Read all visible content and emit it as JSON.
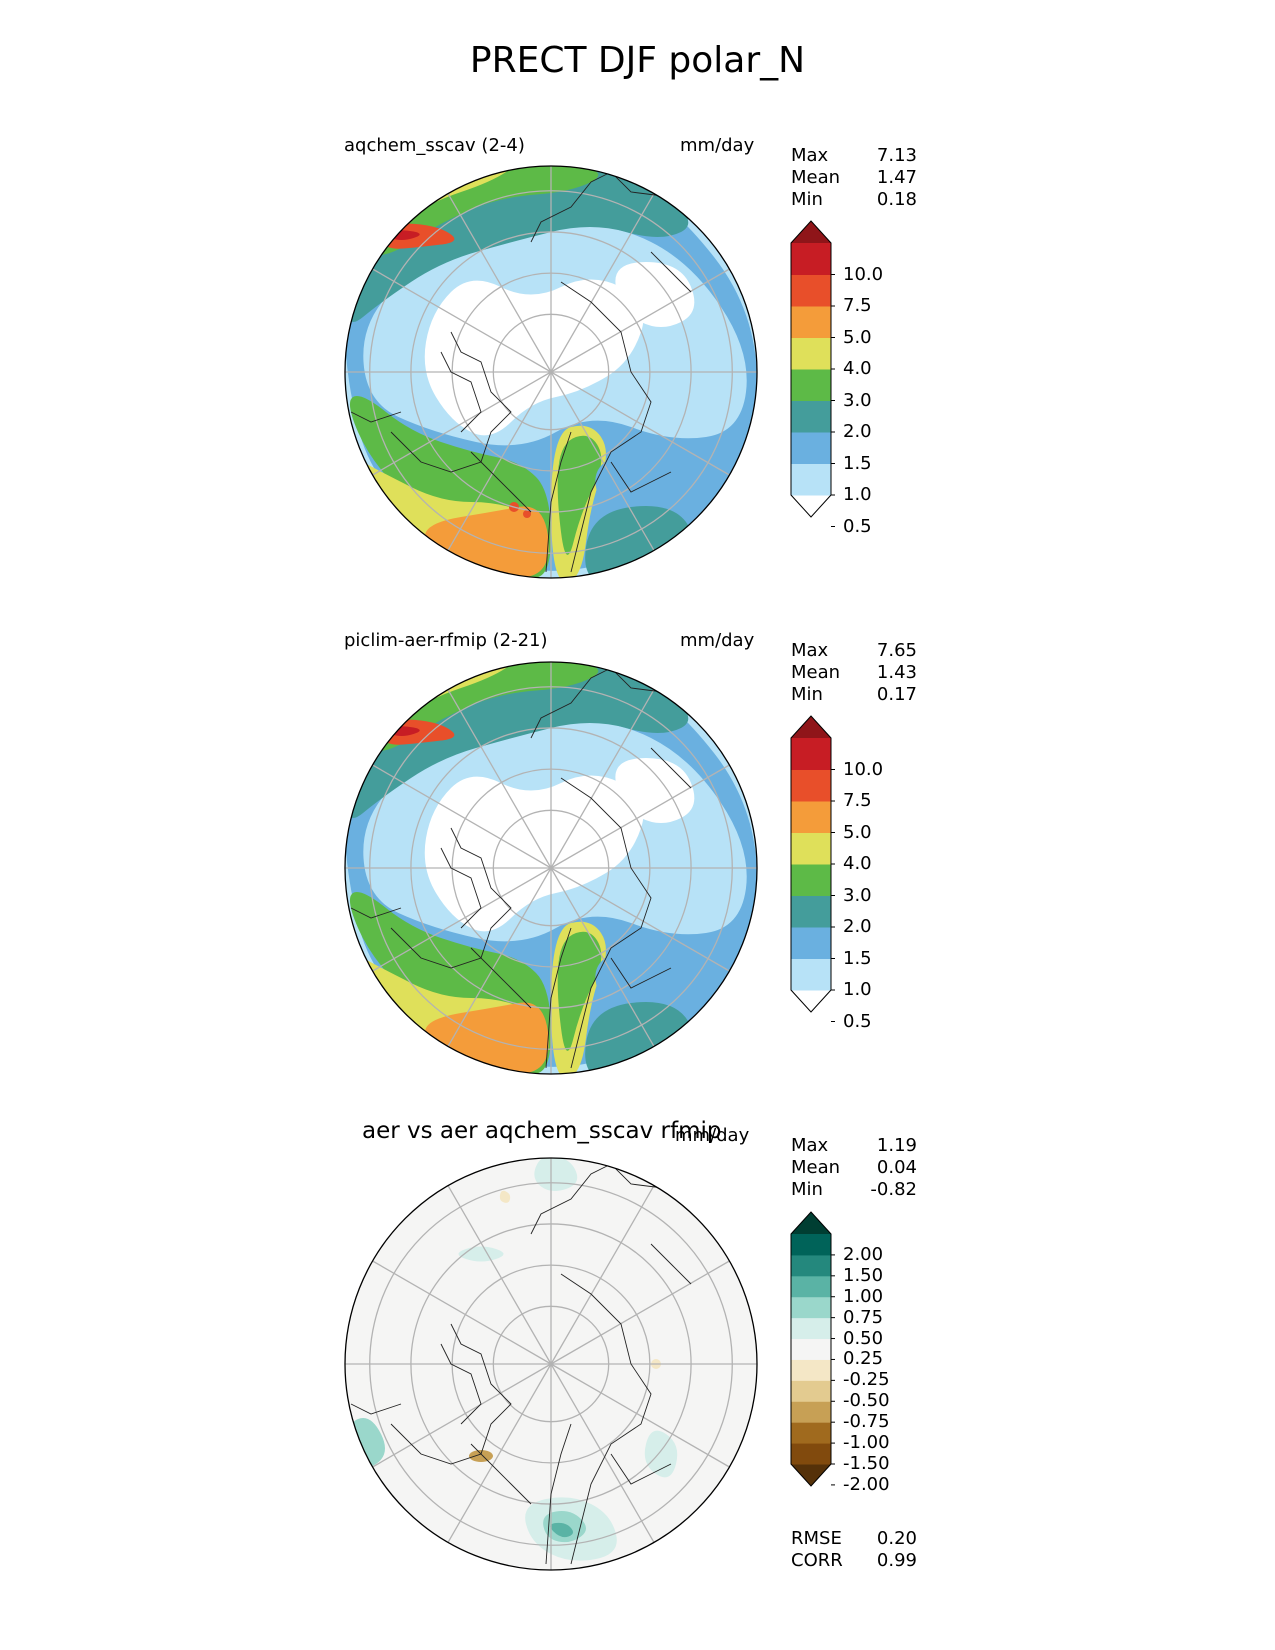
{
  "title": "PRECT DJF polar_N",
  "colors": {
    "prect_levels": [
      "#ffffff",
      "#b7e2f7",
      "#6ab0e0",
      "#449d9b",
      "#5dba47",
      "#dfe05a",
      "#f49c3a",
      "#e84f2a",
      "#c71d24",
      "#8f1519"
    ],
    "diff_levels": [
      "#553109",
      "#814a0d",
      "#a06a1e",
      "#c7a055",
      "#e3cb90",
      "#f4e7c6",
      "#f5f5f4",
      "#d6eeea",
      "#9ad7cb",
      "#5ab3a5",
      "#24887d",
      "#006359",
      "#003e32"
    ]
  },
  "chart_data": [
    {
      "type": "map",
      "projection": "north-polar-stereographic",
      "panel_label": "aqchem_sscav (2-4)",
      "units": "mm/day",
      "stats": {
        "Max": "7.13",
        "Mean": "1.47",
        "Min": "0.18"
      },
      "colorbar_ticks": [
        "10.0",
        "7.5",
        "5.0",
        "4.0",
        "3.0",
        "2.0",
        "1.5",
        "1.0",
        "0.5"
      ]
    },
    {
      "type": "map",
      "projection": "north-polar-stereographic",
      "panel_label": "piclim-aer-rfmip (2-21)",
      "units": "mm/day",
      "stats": {
        "Max": "7.65",
        "Mean": "1.43",
        "Min": "0.17"
      },
      "colorbar_ticks": [
        "10.0",
        "7.5",
        "5.0",
        "4.0",
        "3.0",
        "2.0",
        "1.5",
        "1.0",
        "0.5"
      ]
    },
    {
      "type": "map",
      "projection": "north-polar-stereographic",
      "panel_label": "aer vs aer aqchem_sscav rfmip",
      "units": "mm/day",
      "stats": {
        "Max": "1.19",
        "Mean": "0.04",
        "Min": "-0.82"
      },
      "colorbar_ticks": [
        "2.00",
        "1.50",
        "1.00",
        "0.75",
        "0.50",
        "0.25",
        "-0.25",
        "-0.50",
        "-0.75",
        "-1.00",
        "-1.50",
        "-2.00"
      ],
      "metrics": {
        "RMSE": "0.20",
        "CORR": "0.99"
      }
    }
  ]
}
